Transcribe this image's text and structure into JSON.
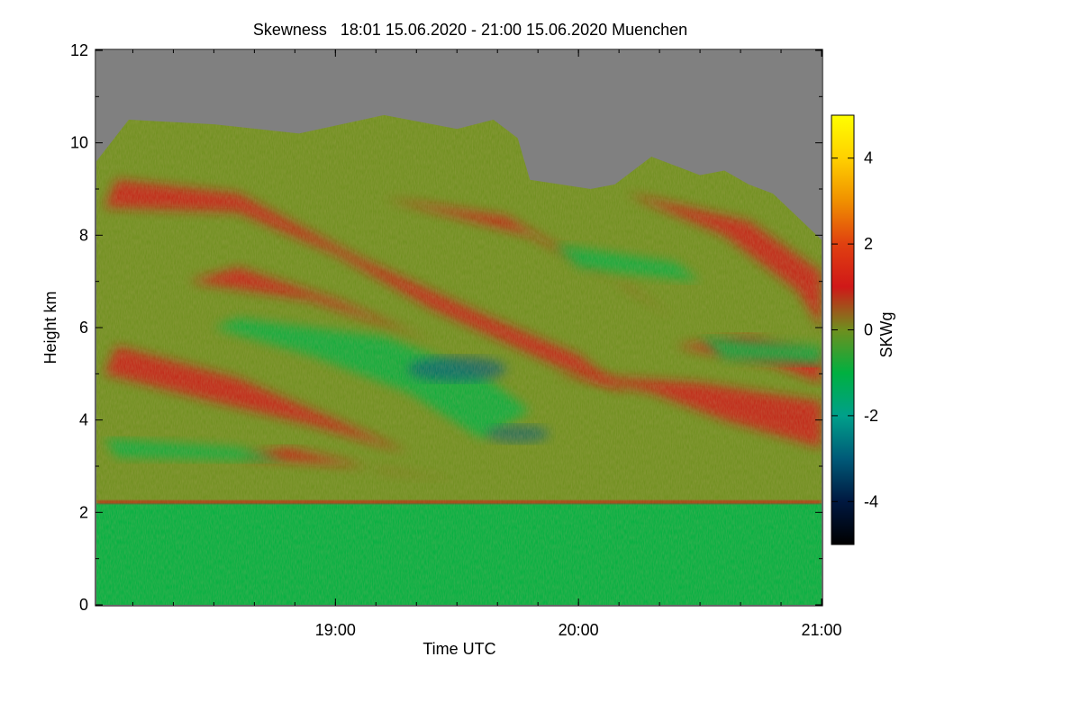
{
  "chart_data": {
    "type": "heatmap",
    "title": "Skewness   18:01 15.06.2020 - 21:00 15.06.2020 Muenchen",
    "xlabel": "Time UTC",
    "ylabel": "Height km",
    "colorbar_label": "SKWg",
    "x_range": [
      "18:01",
      "21:00"
    ],
    "x_ticks": [
      "19:00",
      "20:00",
      "21:00"
    ],
    "xlim": [
      18.0167,
      21.0
    ],
    "ylim": [
      0,
      12
    ],
    "y_ticks": [
      0,
      2,
      4,
      6,
      8,
      10,
      12
    ],
    "clim": [
      -5,
      5
    ],
    "colorbar_ticks": [
      -4,
      -2,
      0,
      2,
      4
    ],
    "colormap": [
      {
        "value": -5,
        "color": "#000000"
      },
      {
        "value": -4,
        "color": "#001840"
      },
      {
        "value": -3,
        "color": "#005a78"
      },
      {
        "value": -2,
        "color": "#00a08a"
      },
      {
        "value": -1,
        "color": "#00b040"
      },
      {
        "value": 0,
        "color": "#6f8f1e"
      },
      {
        "value": 1,
        "color": "#d01818"
      },
      {
        "value": 2,
        "color": "#e04010"
      },
      {
        "value": 3,
        "color": "#f09000"
      },
      {
        "value": 4,
        "color": "#ffd000"
      },
      {
        "value": 5,
        "color": "#ffff00"
      }
    ],
    "no_data_color": "#808080",
    "features": {
      "cloud_top_km": [
        [
          18.0167,
          9.6
        ],
        [
          18.15,
          10.5
        ],
        [
          18.5,
          10.4
        ],
        [
          18.85,
          10.2
        ],
        [
          19.2,
          10.6
        ],
        [
          19.5,
          10.3
        ],
        [
          19.65,
          10.5
        ],
        [
          19.75,
          10.1
        ],
        [
          19.8,
          9.2
        ],
        [
          20.05,
          9.0
        ],
        [
          20.15,
          9.1
        ],
        [
          20.3,
          9.7
        ],
        [
          20.5,
          9.3
        ],
        [
          20.6,
          9.4
        ],
        [
          20.7,
          9.1
        ],
        [
          20.8,
          8.9
        ],
        [
          21.0,
          7.9
        ]
      ],
      "boundary_layer_top_km": 2.2,
      "description_values": {
        "boundary_layer_skewness": -1,
        "cloud_layer_skewness": 1,
        "entrainment_line_skewness": 1.5,
        "mid_level_minimum_skewness": -2.5
      }
    }
  }
}
